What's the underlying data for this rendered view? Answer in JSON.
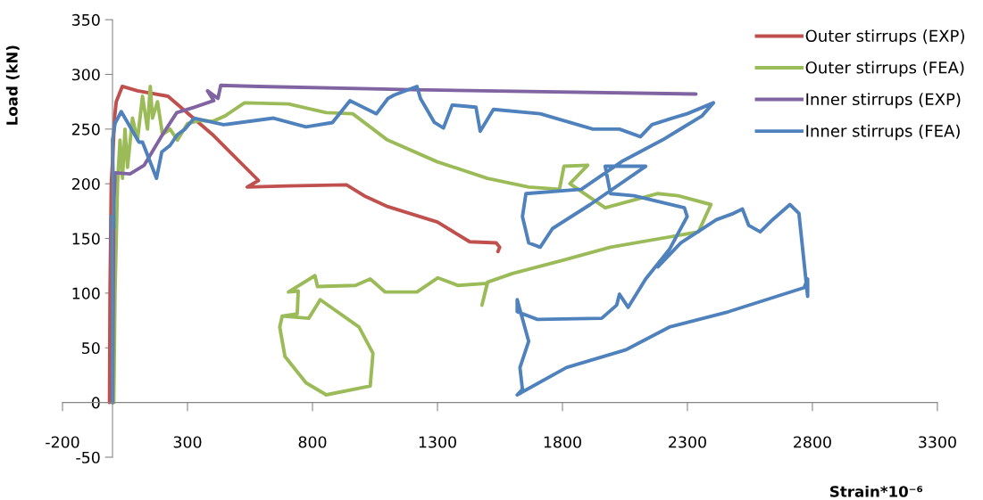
{
  "chart_data": {
    "type": "line",
    "xlabel": "Strain*10⁻⁶",
    "ylabel": "Load (kN)",
    "xlim": [
      -200,
      3300
    ],
    "xticks": [
      -200,
      300,
      800,
      1300,
      1800,
      2300,
      2800,
      3300
    ],
    "ylim": [
      -50,
      350
    ],
    "yticks": [
      -50,
      0,
      50,
      100,
      150,
      200,
      250,
      300,
      350
    ],
    "grid": false,
    "legend": "top right",
    "marker": "none",
    "line_style": "solid",
    "series": [
      {
        "name": "Outer stirrups (EXP)",
        "color": "#c0504d",
        "x": [
          -12,
          -10,
          -5,
          0,
          8,
          15,
          39,
          100,
          222,
          400,
          584,
          539,
          700,
          936,
          1007,
          1102,
          1300,
          1429,
          1535,
          1549,
          1542
        ],
        "values": [
          0,
          100,
          200,
          220,
          260,
          275,
          289,
          285,
          280,
          245,
          203,
          197,
          198,
          199,
          189,
          179,
          165,
          147,
          146,
          142,
          138
        ]
      },
      {
        "name": "Outer stirrups (FEA)",
        "color": "#9bbb59",
        "x": [
          5,
          10,
          15,
          20,
          30,
          40,
          50,
          60,
          80,
          100,
          120,
          140,
          151,
          160,
          180,
          200,
          230,
          260,
          300,
          350,
          400,
          450,
          528,
          704,
          855,
          961,
          1100,
          1300,
          1500,
          1665,
          1788,
          1806,
          1901,
          1830,
          1971,
          2182,
          2263,
          2394,
          2344,
          1992,
          1800,
          1600,
          1500,
          1478,
          1500,
          1383,
          1302,
          1218,
          1091,
          1031,
          972,
          820,
          810,
          704,
          743,
          739,
          679,
          785,
          831,
          986,
          1042,
          1031,
          855,
          774,
          690,
          669,
          679
        ],
        "values": [
          0,
          100,
          150,
          200,
          240,
          205,
          250,
          215,
          260,
          240,
          280,
          250,
          289,
          260,
          275,
          245,
          250,
          240,
          255,
          258,
          257,
          262,
          274,
          273,
          265,
          264,
          240,
          220,
          205,
          197,
          195,
          216,
          217,
          200,
          178,
          191,
          189,
          181,
          156,
          142,
          130,
          118,
          110,
          89,
          109,
          107,
          114,
          101,
          101,
          113,
          107,
          106,
          116,
          101,
          102,
          81,
          79,
          77,
          94,
          69,
          45,
          15,
          7,
          18,
          42,
          69,
          79
        ]
      },
      {
        "name": "Inner stirrups (EXP)",
        "color": "#8064a2",
        "x": [
          0,
          3,
          5,
          10,
          70,
          127,
          200,
          257,
          327,
          405,
          380,
          422,
          433,
          584,
          1200,
          2334
        ],
        "values": [
          0,
          100,
          180,
          210,
          209,
          217,
          245,
          265,
          270,
          276,
          285,
          278,
          290,
          289,
          286,
          282
        ]
      },
      {
        "name": "Inner stirrups (FEA)",
        "color": "#4f81bd",
        "x": [
          0,
          0,
          -5,
          5,
          0,
          10,
          35,
          106,
          120,
          176,
          197,
          230,
          260,
          290,
          327,
          444,
          644,
          774,
          880,
          950,
          1056,
          1102,
          1126,
          1218,
          1232,
          1288,
          1324,
          1359,
          1454,
          1471,
          1524,
          1711,
          1922,
          2028,
          2112,
          2158,
          2239,
          2299,
          2404,
          2358,
          2200,
          2042,
          1876,
          1654,
          1640,
          1665,
          1711,
          1760,
          1911,
          2133,
          1971,
          1992,
          2087,
          2288,
          2299,
          2228,
          2133,
          2063,
          2028,
          2017,
          1957,
          1700,
          1619,
          1619,
          1665,
          1630,
          1640,
          1619,
          1816,
          2052,
          2228,
          2464,
          2767,
          2781,
          2781,
          2746,
          2710,
          2640,
          2591,
          2545,
          2520,
          2485,
          2415,
          2274,
          2182
        ],
        "values": [
          0,
          100,
          170,
          160,
          240,
          255,
          266,
          238,
          238,
          205,
          229,
          235,
          245,
          250,
          260,
          254,
          260,
          252,
          256,
          276,
          264,
          278,
          281,
          289,
          278,
          256,
          251,
          272,
          270,
          248,
          268,
          264,
          250,
          250,
          243,
          254,
          260,
          264,
          274,
          262,
          240,
          221,
          195,
          191,
          170,
          146,
          142,
          159,
          181,
          216,
          216,
          191,
          189,
          178,
          170,
          140,
          113,
          87,
          99,
          89,
          77,
          76,
          83,
          94,
          56,
          32,
          12,
          7,
          32,
          48,
          69,
          83,
          105,
          113,
          97,
          173,
          181,
          167,
          156,
          162,
          177,
          173,
          167,
          146,
          124
        ]
      }
    ]
  }
}
